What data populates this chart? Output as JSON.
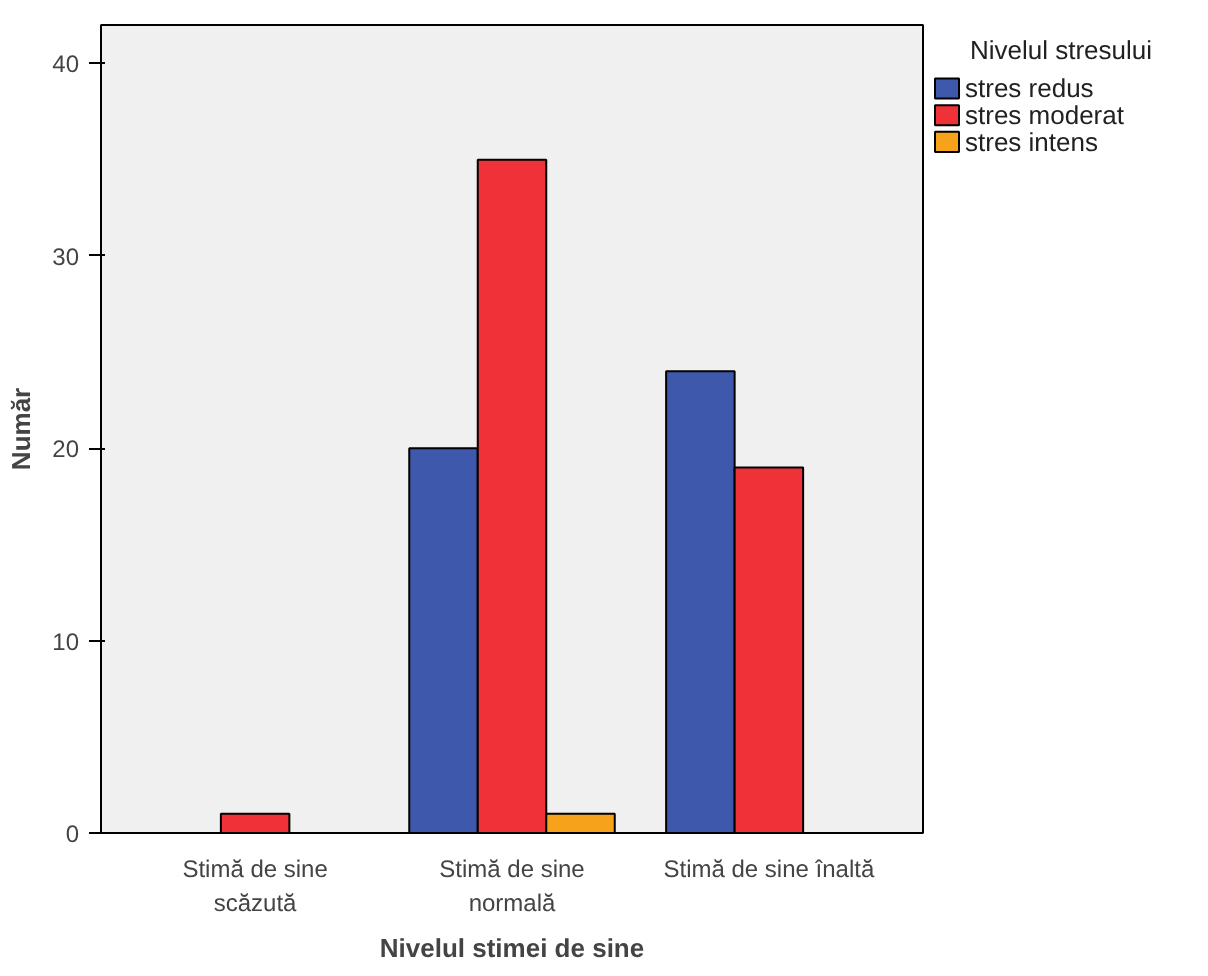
{
  "chart_data": {
    "type": "bar",
    "xlabel": "Nivelul stimei de sine",
    "ylabel": "Număr",
    "legend_title": "Nivelul stresului",
    "categories": [
      "Stimă de sine\nscăzută",
      "Stimă de sine\nnormală",
      "Stimă de sine înaltă"
    ],
    "series": [
      {
        "name": "stres redus",
        "color": "#3e58ac",
        "values": [
          null,
          20,
          24
        ]
      },
      {
        "name": "stres moderat",
        "color": "#ee3238",
        "values": [
          1,
          35,
          19
        ]
      },
      {
        "name": "stres intens",
        "color": "#f7a21b",
        "values": [
          null,
          1,
          null
        ]
      }
    ],
    "ylim": [
      0,
      42
    ],
    "yticks": [
      0,
      10,
      20,
      30,
      40
    ],
    "grid": false,
    "legend": "right"
  }
}
